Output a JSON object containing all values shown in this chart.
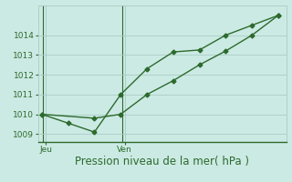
{
  "line1_x": [
    0,
    1,
    2,
    3,
    4,
    5,
    6,
    7,
    8,
    9
  ],
  "line1_y": [
    1010.0,
    1009.55,
    1009.1,
    1011.0,
    1012.3,
    1013.15,
    1013.25,
    1014.0,
    1014.5,
    1015.0
  ],
  "line2_x": [
    0,
    2,
    3,
    4,
    5,
    6,
    7,
    8,
    9
  ],
  "line2_y": [
    1010.0,
    1009.8,
    1010.0,
    1011.0,
    1011.7,
    1012.5,
    1013.2,
    1014.0,
    1015.0
  ],
  "line_color": "#2d6a2d",
  "marker": "D",
  "markersize": 2.5,
  "linewidth": 1.0,
  "xlabel": "Pression niveau de la mer( hPa )",
  "yticks": [
    1009,
    1010,
    1011,
    1012,
    1013,
    1014
  ],
  "ylim": [
    1008.6,
    1015.5
  ],
  "xlim": [
    -0.15,
    9.3
  ],
  "vline_positions": [
    0.05,
    3.05
  ],
  "xtick_positions": [
    0.15,
    3.15
  ],
  "xtick_labels": [
    "Jeu",
    "Ven"
  ],
  "bg_color": "#cceae4",
  "grid_color": "#aaccc6",
  "xlabel_fontsize": 8.5,
  "ytick_fontsize": 6.5,
  "xtick_fontsize": 6.5
}
